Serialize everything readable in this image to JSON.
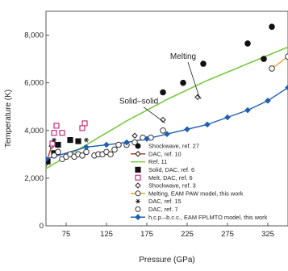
{
  "chart_data": {
    "type": "scatter",
    "xlabel": "Pressure (GPa)",
    "ylabel": "Temperature (K)",
    "xlim": [
      50,
      350
    ],
    "ylim": [
      0,
      9000
    ],
    "x_ticks": [
      75,
      125,
      175,
      225,
      275,
      325
    ],
    "y_ticks": [
      2000,
      4000,
      6000,
      8000
    ],
    "y_tick_labels": [
      "2,000",
      "4,000",
      "6,000",
      "8,000"
    ],
    "grid": false,
    "legend_position": "lower-right",
    "annotations": [
      {
        "text": "Solid–solid",
        "x": 165,
        "y": 5120,
        "arrow_to": [
          195,
          4380
        ]
      },
      {
        "text": "Melting",
        "x": 220,
        "y": 7000,
        "arrow_to": [
          240,
          5400
        ]
      }
    ],
    "series": [
      {
        "name": "Shockwave, ref. 27",
        "marker": "filled-circle",
        "color": "#111111",
        "points": [
          [
            195,
            5600
          ],
          [
            220,
            6000
          ],
          [
            245,
            6800
          ],
          [
            300,
            7650
          ],
          [
            320,
            7000
          ],
          [
            330,
            8350
          ]
        ]
      },
      {
        "name": "DAC, ref. 10",
        "marker": "open-diamond-line",
        "color": "#c0392b",
        "points": [
          [
            50,
            2600
          ],
          [
            57,
            3350
          ]
        ]
      },
      {
        "name": "Ref. 11",
        "marker": "line",
        "color": "#7ac943",
        "points": [
          [
            50,
            2400
          ],
          [
            100,
            3400
          ],
          [
            150,
            4400
          ],
          [
            200,
            5300
          ],
          [
            250,
            6100
          ],
          [
            300,
            6800
          ],
          [
            350,
            7500
          ]
        ]
      },
      {
        "name": "Solid, DAC, ref. 6",
        "marker": "filled-square",
        "color": "#111111",
        "points": [
          [
            52,
            2700
          ],
          [
            60,
            3050
          ],
          [
            65,
            3400
          ],
          [
            80,
            3600
          ],
          [
            90,
            3550
          ]
        ]
      },
      {
        "name": "Melt, DAC, ref. 6",
        "marker": "open-square",
        "color": "#c03080",
        "points": [
          [
            58,
            3450
          ],
          [
            60,
            3900
          ],
          [
            63,
            4200
          ],
          [
            70,
            3900
          ],
          [
            95,
            4100
          ],
          [
            98,
            4300
          ]
        ]
      },
      {
        "name": "Shockwave, ref. 3",
        "marker": "open-diamond",
        "color": "#111111",
        "points": [
          [
            160,
            3780
          ],
          [
            195,
            4450
          ],
          [
            238,
            5400
          ]
        ]
      },
      {
        "name": "Melting, EAM PAW model, this work",
        "marker": "open-circle-line",
        "color": "#f0a030",
        "points": [
          [
            330,
            6600
          ],
          [
            350,
            7100
          ]
        ]
      },
      {
        "name": "DAC, ref. 15",
        "marker": "asterisk",
        "color": "#111111",
        "points": [
          [
            60,
            3600
          ],
          [
            100,
            3600
          ]
        ]
      },
      {
        "name": "DAC, ref. 7",
        "marker": "open-circle",
        "color": "#111111",
        "points": [
          [
            60,
            2950
          ],
          [
            65,
            3100
          ],
          [
            70,
            2800
          ],
          [
            75,
            2900
          ],
          [
            80,
            3000
          ],
          [
            85,
            2900
          ],
          [
            90,
            3000
          ],
          [
            95,
            2950
          ],
          [
            100,
            3100
          ],
          [
            110,
            2950
          ],
          [
            115,
            3000
          ],
          [
            120,
            3000
          ],
          [
            125,
            3100
          ],
          [
            130,
            3000
          ],
          [
            135,
            3200
          ],
          [
            140,
            3400
          ],
          [
            150,
            3400
          ],
          [
            160,
            3500
          ],
          [
            170,
            3700
          ],
          [
            180,
            3700
          ],
          [
            195,
            4000
          ]
        ]
      },
      {
        "name": "h.c.p.–b.c.c., EAM FPLMTO model, this work",
        "marker": "filled-diamond-line",
        "color": "#1f5fb0",
        "points": [
          [
            50,
            2800
          ],
          [
            100,
            3300
          ],
          [
            125,
            3400
          ],
          [
            150,
            3500
          ],
          [
            175,
            3650
          ],
          [
            200,
            3850
          ],
          [
            225,
            4050
          ],
          [
            250,
            4250
          ],
          [
            275,
            4550
          ],
          [
            300,
            4850
          ],
          [
            325,
            5250
          ],
          [
            350,
            5800
          ],
          [
            357,
            6050
          ]
        ]
      }
    ]
  }
}
